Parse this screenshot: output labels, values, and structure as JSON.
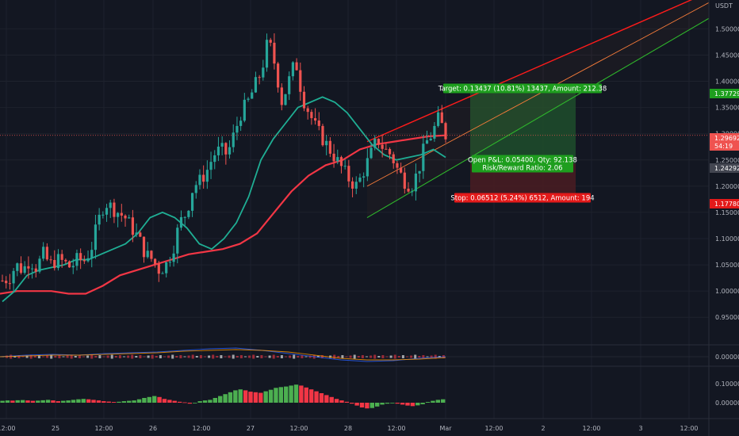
{
  "currency": "USDT",
  "colors": {
    "background": "#131722",
    "up": "#26a69a",
    "down": "#ef5350",
    "ma_fast": "#1fae94",
    "ma_slow": "#f23645",
    "channel_red": "#ff1a1a",
    "channel_orange": "#f77c3a",
    "channel_green": "#2cb82c",
    "profit_zone": "#1e4d2b",
    "loss_zone": "#4a1c22",
    "macd_line": "#2962ff",
    "signal_line": "#ff9800",
    "hist_green": "#4caf50",
    "hist_red": "#f23645"
  },
  "labels": {
    "target": "Target: 0.13437 (10.81%) 13437, Amount: 212.38",
    "open_pl": "Open P&L: 0.05400, Qty: 92.138",
    "risk_reward": "Risk/Reward Ratio: 2.06",
    "stop": "Stop: 0.06512 (5.24%) 6512, Amount: 194"
  },
  "price_tags": {
    "top": "1.37729",
    "last": "1.29692",
    "countdown": "54:19",
    "entry": "1.24292",
    "bottom": "1.17780"
  },
  "chart_data": [
    {
      "type": "candlestick",
      "title": "",
      "y_axis_ticks": [
        "1.50000",
        "1.45000",
        "1.40000",
        "1.35000",
        "1.30000",
        "1.25000",
        "1.20000",
        "1.15000",
        "1.10000",
        "1.05000",
        "1.00000",
        "0.95000"
      ],
      "x_axis_ticks": [
        "12:00",
        "25",
        "12:00",
        "26",
        "12:00",
        "27",
        "12:00",
        "28",
        "12:00",
        "Mar",
        "12:00",
        "2",
        "12:00",
        "3",
        "12:00"
      ],
      "ylim": [
        0.905,
        1.555
      ],
      "close_path": [
        1.02,
        1.025,
        1.05,
        1.04,
        1.06,
        1.045,
        1.07,
        1.05,
        1.06,
        1.055,
        1.045,
        1.06,
        1.058,
        1.08,
        1.13,
        1.17,
        1.16,
        1.15,
        1.14,
        1.12,
        1.1,
        1.07,
        1.06,
        1.04,
        1.05,
        1.08,
        1.13,
        1.15,
        1.2,
        1.21,
        1.23,
        1.26,
        1.27,
        1.26,
        1.3,
        1.34,
        1.36,
        1.39,
        1.42,
        1.48,
        1.43,
        1.36,
        1.4,
        1.44,
        1.37,
        1.34,
        1.31,
        1.29,
        1.27,
        1.25,
        1.23,
        1.21,
        1.2,
        1.23,
        1.26,
        1.29,
        1.27,
        1.26,
        1.23,
        1.21,
        1.2,
        1.23,
        1.28,
        1.3,
        1.33,
        1.29692
      ],
      "ma_fast_path": [
        0.98,
        1.0,
        1.03,
        1.04,
        1.045,
        1.05,
        1.06,
        1.06,
        1.07,
        1.08,
        1.09,
        1.11,
        1.14,
        1.15,
        1.14,
        1.12,
        1.09,
        1.08,
        1.1,
        1.13,
        1.18,
        1.25,
        1.29,
        1.32,
        1.35,
        1.36,
        1.37,
        1.36,
        1.34,
        1.31,
        1.28,
        1.26,
        1.25,
        1.255,
        1.26,
        1.27,
        1.255
      ],
      "ma_slow_path": [
        0.995,
        1.0,
        1.0,
        1.0,
        0.995,
        0.995,
        1.01,
        1.03,
        1.04,
        1.05,
        1.06,
        1.07,
        1.075,
        1.08,
        1.09,
        1.11,
        1.15,
        1.19,
        1.22,
        1.24,
        1.25,
        1.27,
        1.28,
        1.285,
        1.29,
        1.295,
        1.297
      ],
      "channel": {
        "upper": [
          [
            1.285,
            1.57
          ]
        ],
        "middle": [
          [
            1.2,
            1.55
          ]
        ],
        "lower": [
          [
            1.14,
            1.52
          ]
        ]
      },
      "position": {
        "entry": 1.24292,
        "target": 1.37729,
        "stop": 1.1778
      }
    },
    {
      "type": "line",
      "title": "",
      "y_axis_ticks": [
        "0.00000"
      ],
      "series": [
        {
          "name": "",
          "values": [
            0.0,
            0.002,
            0.003,
            0.002,
            0.004,
            0.005,
            0.006,
            0.008,
            0.01,
            0.011,
            0.008,
            0.004,
            0.0,
            -0.004,
            -0.006,
            -0.005,
            -0.002,
            0.0
          ]
        },
        {
          "name": "",
          "values": [
            0.0,
            0.001,
            0.002,
            0.002,
            0.003,
            0.004,
            0.005,
            0.007,
            0.008,
            0.009,
            0.008,
            0.006,
            0.002,
            -0.002,
            -0.004,
            -0.004,
            -0.003,
            -0.001
          ]
        }
      ]
    },
    {
      "type": "bar",
      "title": "",
      "y_axis_ticks": [
        "0.10000",
        "0.00000"
      ],
      "values": [
        0.01,
        0.012,
        0.011,
        0.013,
        0.014,
        0.012,
        0.01,
        0.011,
        0.013,
        0.015,
        0.012,
        0.008,
        0.01,
        0.012,
        0.015,
        0.018,
        0.02,
        0.018,
        0.015,
        0.012,
        0.008,
        0.006,
        0.004,
        0.005,
        0.008,
        0.01,
        0.012,
        0.018,
        0.025,
        0.03,
        0.035,
        0.03,
        0.02,
        0.015,
        0.01,
        0.005,
        0.002,
        -0.005,
        -0.002,
        0.008,
        0.012,
        0.015,
        0.025,
        0.035,
        0.045,
        0.055,
        0.065,
        0.07,
        0.065,
        0.058,
        0.055,
        0.052,
        0.06,
        0.068,
        0.078,
        0.082,
        0.085,
        0.09,
        0.095,
        0.09,
        0.08,
        0.07,
        0.06,
        0.05,
        0.04,
        0.03,
        0.02,
        0.012,
        0.005,
        -0.005,
        -0.015,
        -0.025,
        -0.03,
        -0.028,
        -0.02,
        -0.01,
        -0.005,
        0.0,
        -0.005,
        -0.01,
        -0.015,
        -0.018,
        -0.014,
        -0.008,
        0.004,
        0.01,
        0.015,
        0.018
      ]
    }
  ]
}
